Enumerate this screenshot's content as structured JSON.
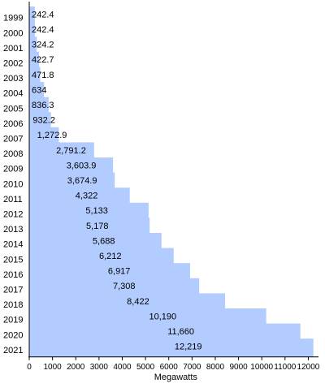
{
  "chart_data": {
    "type": "bar",
    "orientation": "horizontal-step",
    "categories": [
      "1999",
      "2000",
      "2001",
      "2002",
      "2003",
      "2004",
      "2005",
      "2006",
      "2007",
      "2008",
      "2009",
      "2010",
      "2011",
      "2012",
      "2013",
      "2014",
      "2015",
      "2016",
      "2017",
      "2018",
      "2019",
      "2020",
      "2021"
    ],
    "values": [
      242.4,
      242.4,
      324.2,
      422.7,
      471.8,
      634,
      836.3,
      932.2,
      1272.9,
      2791.2,
      3603.9,
      3674.9,
      4322,
      5133,
      5178,
      5688,
      6212,
      6917,
      7308,
      8422,
      10190,
      11660,
      12219
    ],
    "value_labels": [
      "242.4",
      "242.4",
      "324.2",
      "422.7",
      "471.8",
      "634",
      "836.3",
      "932.2",
      "1,272.9",
      "2,791.2",
      "3,603.9",
      "3,674.9",
      "4,322",
      "5,133",
      "5,178",
      "5,688",
      "6,212",
      "6,917",
      "7,308",
      "8,422",
      "10,190",
      "11,660",
      "12,219"
    ],
    "xlabel": "Megawatts",
    "xticks": [
      "0",
      "1000",
      "2000",
      "3000",
      "4000",
      "5000",
      "6000",
      "7000",
      "8000",
      "9000",
      "10000",
      "11000",
      "12000"
    ],
    "xlim": [
      0,
      12500
    ],
    "fill_color": "#b3ccff",
    "grid": false
  }
}
